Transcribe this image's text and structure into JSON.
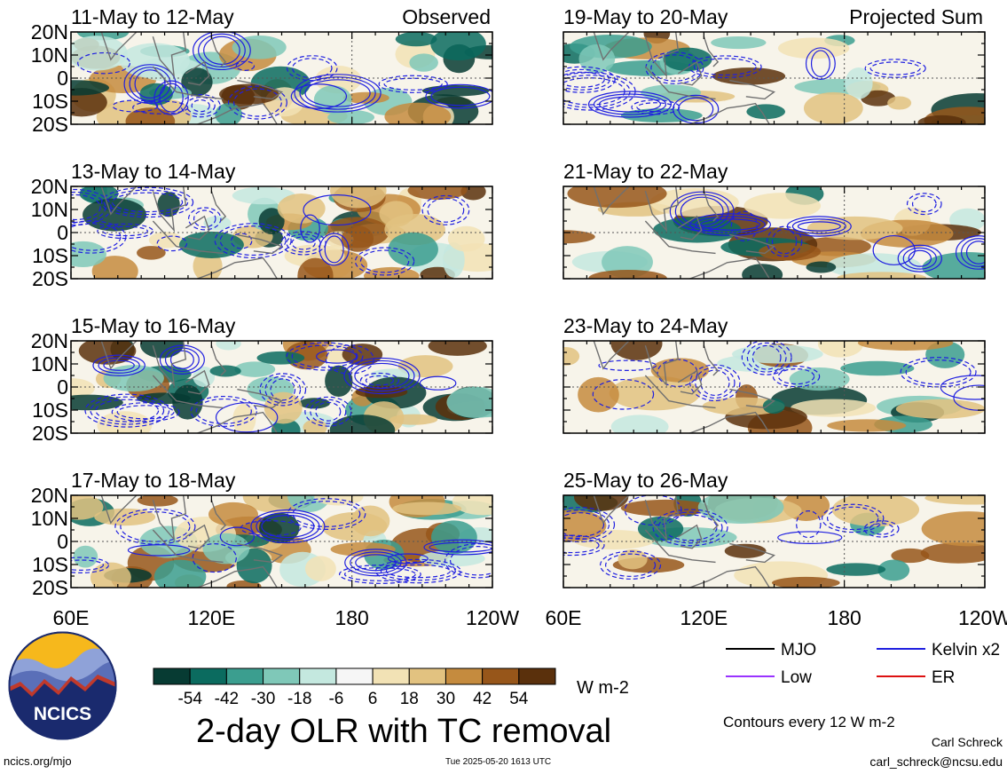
{
  "chart_data": {
    "type": "heatmap",
    "title": "2-day OLR with TC removal",
    "column_labels": {
      "left": "Observed",
      "right": "Projected Sum"
    },
    "x_ticks": [
      "60E",
      "120E",
      "180",
      "120W"
    ],
    "x_tick_values": [
      60,
      120,
      180,
      240
    ],
    "x_range": [
      60,
      240
    ],
    "y_ticks": [
      "20N",
      "10N",
      "0",
      "10S",
      "20S"
    ],
    "y_tick_values": [
      20,
      10,
      0,
      -10,
      -20
    ],
    "y_range": [
      -20,
      20
    ],
    "panels": [
      {
        "column": "left",
        "label": "11-May to 12-May"
      },
      {
        "column": "left",
        "label": "13-May to 14-May"
      },
      {
        "column": "left",
        "label": "15-May to 16-May"
      },
      {
        "column": "left",
        "label": "17-May to 18-May"
      },
      {
        "column": "right",
        "label": "19-May to 20-May"
      },
      {
        "column": "right",
        "label": "21-May to 22-May"
      },
      {
        "column": "right",
        "label": "23-May to 24-May"
      },
      {
        "column": "right",
        "label": "25-May to 26-May"
      }
    ],
    "colorbar": {
      "unit": "W m-2",
      "labels": [
        "-54",
        "-42",
        "-30",
        "-18",
        "-6",
        "6",
        "18",
        "30",
        "42",
        "54"
      ],
      "colors": [
        "#073b33",
        "#0b6b5f",
        "#3b9e8f",
        "#7fc8b8",
        "#c4e8df",
        "#f6f6f6",
        "#f2e2b5",
        "#e2c280",
        "#c58b3e",
        "#97561a",
        "#5a300c"
      ]
    },
    "legend": [
      {
        "label": "MJO",
        "color": "#000000"
      },
      {
        "label": "Kelvin x2",
        "color": "#1f1fe0"
      },
      {
        "label": "Low",
        "color": "#9933ff"
      },
      {
        "label": "ER",
        "color": "#dd1111"
      }
    ],
    "contour_note": "Contours every 12 W m-2"
  },
  "footer": {
    "site": "ncics.org/mjo",
    "timestamp": "Tue 2025-05-20 1613 UTC",
    "author": "Carl Schreck",
    "email": "carl_schreck@ncsu.edu",
    "logo_text": "NCICS"
  }
}
